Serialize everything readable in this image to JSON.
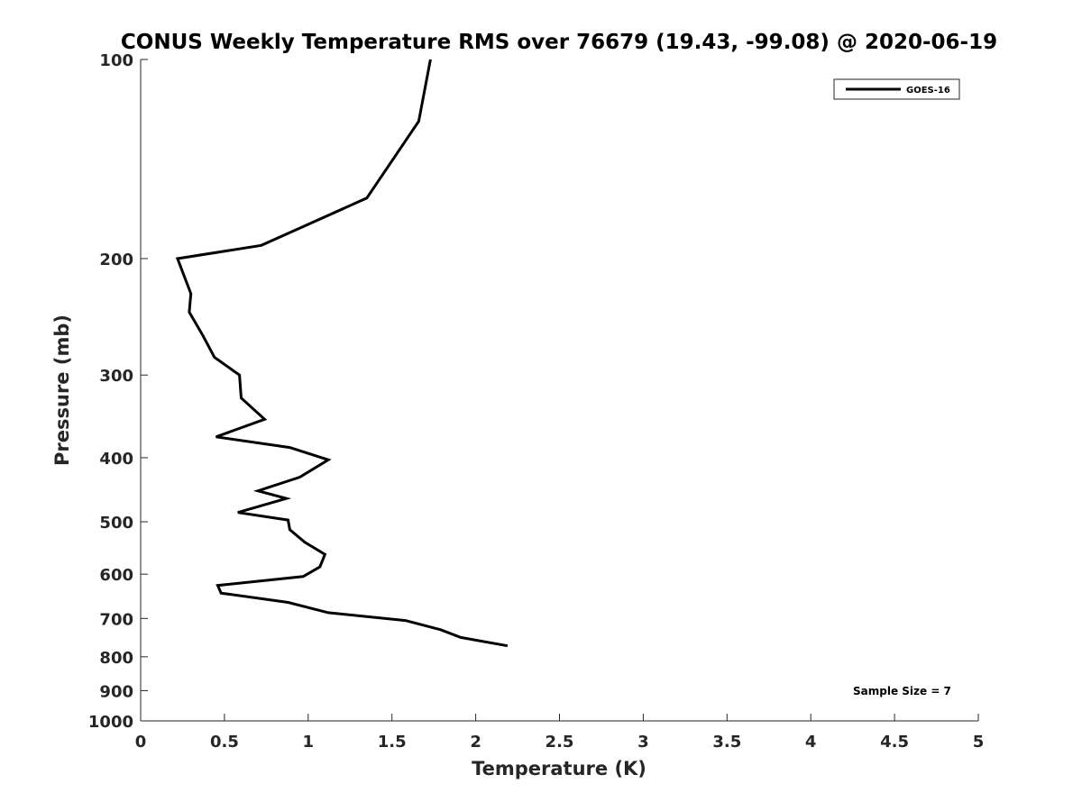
{
  "chart_data": {
    "type": "line",
    "title": "CONUS Weekly Temperature RMS over 76679 (19.43, -99.08) @ 2020-06-19",
    "xlabel": "Temperature (K)",
    "ylabel": "Pressure (mb)",
    "xlim": [
      0,
      5
    ],
    "ylim": [
      1000,
      100
    ],
    "yscale": "log",
    "y_reversed": true,
    "xticks": [
      0,
      0.5,
      1,
      1.5,
      2,
      2.5,
      3,
      3.5,
      4,
      4.5,
      5
    ],
    "xtick_labels": [
      "0",
      "0.5",
      "1",
      "1.5",
      "2",
      "2.5",
      "3",
      "3.5",
      "4",
      "4.5",
      "5"
    ],
    "yticks": [
      100,
      200,
      300,
      400,
      500,
      600,
      700,
      800,
      900,
      1000
    ],
    "ytick_labels": [
      "100",
      "200",
      "300",
      "400",
      "500",
      "600",
      "700",
      "800",
      "900",
      "1000"
    ],
    "grid": false,
    "legend_position": "top-right",
    "series": [
      {
        "name": "GOES-16",
        "color": "#000000",
        "x": [
          1.73,
          1.66,
          1.35,
          0.72,
          0.22,
          0.3,
          0.29,
          0.37,
          0.44,
          0.59,
          0.6,
          0.74,
          0.45,
          0.89,
          1.12,
          0.95,
          0.7,
          0.87,
          0.58,
          0.88,
          0.89,
          0.98,
          1.1,
          1.07,
          0.97,
          0.46,
          0.48,
          0.88,
          1.12,
          1.58,
          1.79,
          1.91,
          2.19
        ],
        "y": [
          100,
          124,
          162,
          191,
          200,
          226,
          241,
          261,
          282,
          300,
          325,
          350,
          372,
          386,
          403,
          428,
          449,
          461,
          484,
          497,
          514,
          537,
          560,
          585,
          605,
          624,
          641,
          662,
          686,
          705,
          728,
          748,
          770
        ]
      }
    ],
    "annotations": [
      "Sample Size = 7"
    ]
  }
}
